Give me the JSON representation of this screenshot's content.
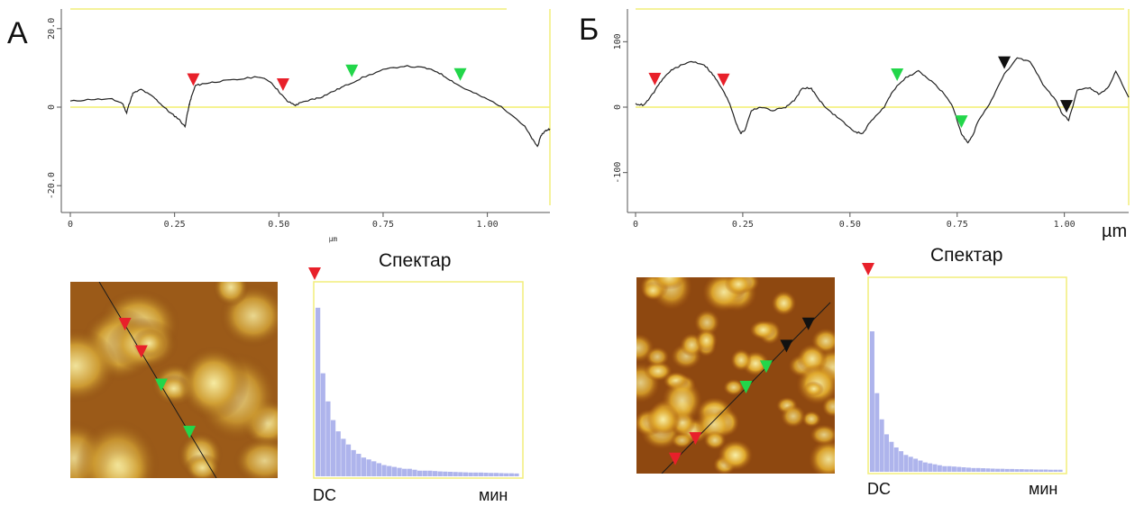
{
  "colors": {
    "frame": "#f2ee7a",
    "zero_line": "#f4ef6e",
    "profile": "#222222",
    "marker_red": "#e8202a",
    "marker_green": "#22d64a",
    "marker_black": "#111111",
    "spectrum": "#aeb4ec"
  },
  "panels": [
    {
      "letter": "А",
      "spectrum_title": "Спектар",
      "dc_label": "DC",
      "min_label": "мин",
      "unit_label": "µm",
      "chart_data": {
        "type": "line",
        "xlim": [
          0,
          1.15
        ],
        "ylim": [
          -25,
          25
        ],
        "x_ticks": [
          "0",
          "0.25",
          "0.50",
          "0.75",
          "1.00"
        ],
        "y_ticks": [
          "20.0",
          "0",
          "-20.0"
        ],
        "xlabel": "µm",
        "series": [
          {
            "x": [
              0,
              0.05,
              0.1,
              0.125,
              0.135,
              0.14,
              0.15,
              0.17,
              0.2,
              0.22,
              0.24,
              0.26,
              0.275,
              0.28,
              0.285,
              0.29,
              0.3,
              0.32,
              0.35,
              0.4,
              0.45,
              0.48,
              0.5,
              0.52,
              0.54,
              0.55,
              0.58,
              0.6,
              0.63,
              0.66,
              0.7,
              0.75,
              0.8,
              0.85,
              0.88,
              0.91,
              0.94,
              0.98,
              1.02,
              1.06,
              1.09,
              1.11,
              1.12,
              1.13,
              1.14,
              1.15
            ],
            "y": [
              1.5,
              2.0,
              2.0,
              1.0,
              -1.5,
              0.5,
              3.5,
              4.5,
              2.5,
              0.5,
              -1.5,
              -3.0,
              -5.0,
              -2.0,
              0.5,
              2.5,
              5.5,
              6.0,
              6.5,
              7.0,
              7.8,
              6.5,
              4.0,
              1.5,
              0.5,
              1.0,
              2.0,
              2.5,
              4.0,
              5.5,
              7.5,
              9.5,
              10.5,
              10.0,
              9.0,
              7.0,
              5.0,
              3.0,
              1.0,
              -2.0,
              -5.0,
              -8.5,
              -10.0,
              -7.0,
              -6.0,
              -5.5
            ]
          }
        ],
        "markers": [
          {
            "color": "red",
            "x": 0.295
          },
          {
            "color": "red",
            "x": 0.51
          },
          {
            "color": "green",
            "x": 0.675
          },
          {
            "color": "green",
            "x": 0.935
          }
        ],
        "spectrum_values": [
          0.9,
          0.55,
          0.4,
          0.3,
          0.24,
          0.2,
          0.17,
          0.14,
          0.12,
          0.1,
          0.09,
          0.08,
          0.07,
          0.06,
          0.055,
          0.05,
          0.045,
          0.04,
          0.04,
          0.035,
          0.03,
          0.03,
          0.03,
          0.028,
          0.026,
          0.025,
          0.024,
          0.023,
          0.022,
          0.021,
          0.02,
          0.02,
          0.02,
          0.019,
          0.018,
          0.018,
          0.017,
          0.016,
          0.016,
          0.015
        ]
      }
    },
    {
      "letter": "Б",
      "spectrum_title": "Спектар",
      "dc_label": "DC",
      "min_label": "мин",
      "unit_label": "µm",
      "chart_data": {
        "type": "line",
        "xlim": [
          0,
          1.15
        ],
        "ylim": [
          -150,
          150
        ],
        "x_ticks": [
          "0",
          "0.25",
          "0.50",
          "0.75",
          "1.00"
        ],
        "y_ticks": [
          "100",
          "0",
          "-100"
        ],
        "xlabel": "µm",
        "series": [
          {
            "x": [
              0,
              0.02,
              0.04,
              0.06,
              0.08,
              0.1,
              0.13,
              0.16,
              0.18,
              0.2,
              0.22,
              0.235,
              0.245,
              0.255,
              0.27,
              0.29,
              0.32,
              0.35,
              0.37,
              0.39,
              0.41,
              0.43,
              0.45,
              0.48,
              0.51,
              0.53,
              0.55,
              0.58,
              0.6,
              0.63,
              0.66,
              0.69,
              0.72,
              0.74,
              0.76,
              0.775,
              0.785,
              0.8,
              0.83,
              0.86,
              0.89,
              0.92,
              0.95,
              0.98,
              0.995,
              1.01,
              1.03,
              1.06,
              1.08,
              1.1,
              1.12,
              1.15
            ],
            "y": [
              5,
              3,
              20,
              40,
              55,
              62,
              70,
              65,
              50,
              30,
              5,
              -25,
              -40,
              -35,
              -5,
              0,
              -5,
              0,
              10,
              30,
              28,
              10,
              -5,
              -20,
              -38,
              -40,
              -20,
              0,
              25,
              45,
              55,
              40,
              20,
              0,
              -40,
              -55,
              -45,
              -20,
              10,
              50,
              75,
              70,
              35,
              10,
              -10,
              -20,
              25,
              30,
              20,
              28,
              55,
              15
            ]
          }
        ],
        "markers": [
          {
            "color": "red",
            "x": 0.045
          },
          {
            "color": "red",
            "x": 0.205
          },
          {
            "color": "green",
            "x": 0.61
          },
          {
            "color": "green",
            "x": 0.76
          },
          {
            "color": "black",
            "x": 0.86
          },
          {
            "color": "black",
            "x": 1.005
          }
        ],
        "spectrum_values": [
          0.75,
          0.42,
          0.28,
          0.2,
          0.16,
          0.13,
          0.11,
          0.09,
          0.08,
          0.07,
          0.06,
          0.05,
          0.045,
          0.04,
          0.035,
          0.03,
          0.03,
          0.028,
          0.026,
          0.024,
          0.022,
          0.02,
          0.02,
          0.019,
          0.018,
          0.017,
          0.016,
          0.016,
          0.015,
          0.015,
          0.014,
          0.014,
          0.013,
          0.013,
          0.012,
          0.012,
          0.012,
          0.011,
          0.011,
          0.011
        ]
      }
    }
  ]
}
